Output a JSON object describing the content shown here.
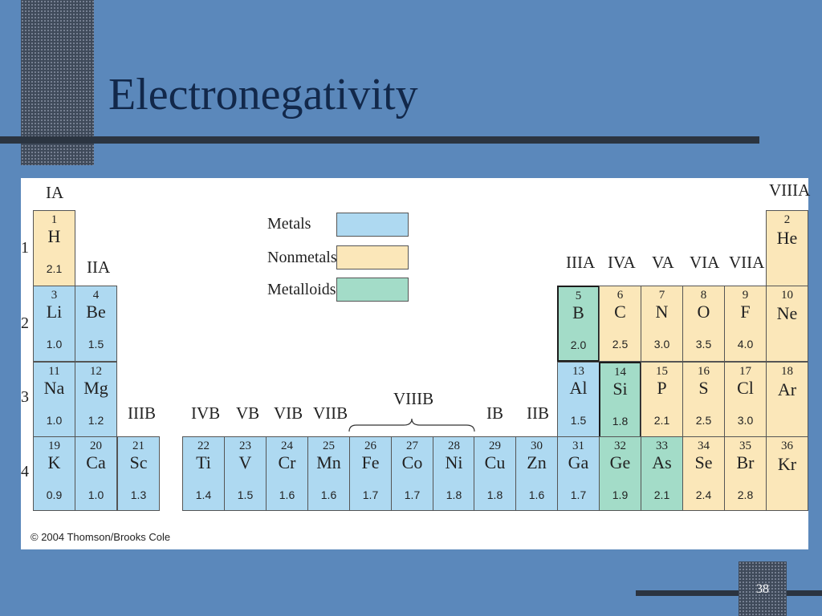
{
  "slide": {
    "title": "Electronegativity",
    "page_number": "38",
    "copyright": "© 2004 Thomson/Brooks Cole"
  },
  "legend": [
    {
      "label": "Metals",
      "color": "#aed9f1"
    },
    {
      "label": "Nonmetals",
      "color": "#fbe7b9"
    },
    {
      "label": "Metalloids",
      "color": "#a3dcc8"
    }
  ],
  "colors": {
    "metal": "#aed9f1",
    "nonmetal": "#fbe7b9",
    "metalloid": "#a3dcc8"
  },
  "group_labels": [
    "IA",
    "IIA",
    "IIIB",
    "IVB",
    "VB",
    "VIB",
    "VIIB",
    "VIIIB",
    "IB",
    "IIB",
    "IIIA",
    "IVA",
    "VA",
    "VIA",
    "VIIA",
    "VIIIA"
  ],
  "period_labels": [
    "1",
    "2",
    "3",
    "4"
  ],
  "elements": [
    {
      "number": "1",
      "symbol": "H",
      "en": "2.1",
      "type": "nonmetal"
    },
    {
      "number": "2",
      "symbol": "He",
      "en": "",
      "type": "nonmetal"
    },
    {
      "number": "3",
      "symbol": "Li",
      "en": "1.0",
      "type": "metal"
    },
    {
      "number": "4",
      "symbol": "Be",
      "en": "1.5",
      "type": "metal"
    },
    {
      "number": "5",
      "symbol": "B",
      "en": "2.0",
      "type": "metalloid"
    },
    {
      "number": "6",
      "symbol": "C",
      "en": "2.5",
      "type": "nonmetal"
    },
    {
      "number": "7",
      "symbol": "N",
      "en": "3.0",
      "type": "nonmetal"
    },
    {
      "number": "8",
      "symbol": "O",
      "en": "3.5",
      "type": "nonmetal"
    },
    {
      "number": "9",
      "symbol": "F",
      "en": "4.0",
      "type": "nonmetal"
    },
    {
      "number": "10",
      "symbol": "Ne",
      "en": "",
      "type": "nonmetal"
    },
    {
      "number": "11",
      "symbol": "Na",
      "en": "1.0",
      "type": "metal"
    },
    {
      "number": "12",
      "symbol": "Mg",
      "en": "1.2",
      "type": "metal"
    },
    {
      "number": "13",
      "symbol": "Al",
      "en": "1.5",
      "type": "metal"
    },
    {
      "number": "14",
      "symbol": "Si",
      "en": "1.8",
      "type": "metalloid"
    },
    {
      "number": "15",
      "symbol": "P",
      "en": "2.1",
      "type": "nonmetal"
    },
    {
      "number": "16",
      "symbol": "S",
      "en": "2.5",
      "type": "nonmetal"
    },
    {
      "number": "17",
      "symbol": "Cl",
      "en": "3.0",
      "type": "nonmetal"
    },
    {
      "number": "18",
      "symbol": "Ar",
      "en": "",
      "type": "nonmetal"
    },
    {
      "number": "19",
      "symbol": "K",
      "en": "0.9",
      "type": "metal"
    },
    {
      "number": "20",
      "symbol": "Ca",
      "en": "1.0",
      "type": "metal"
    },
    {
      "number": "21",
      "symbol": "Sc",
      "en": "1.3",
      "type": "metal"
    },
    {
      "number": "22",
      "symbol": "Ti",
      "en": "1.4",
      "type": "metal"
    },
    {
      "number": "23",
      "symbol": "V",
      "en": "1.5",
      "type": "metal"
    },
    {
      "number": "24",
      "symbol": "Cr",
      "en": "1.6",
      "type": "metal"
    },
    {
      "number": "25",
      "symbol": "Mn",
      "en": "1.6",
      "type": "metal"
    },
    {
      "number": "26",
      "symbol": "Fe",
      "en": "1.7",
      "type": "metal"
    },
    {
      "number": "27",
      "symbol": "Co",
      "en": "1.7",
      "type": "metal"
    },
    {
      "number": "28",
      "symbol": "Ni",
      "en": "1.8",
      "type": "metal"
    },
    {
      "number": "29",
      "symbol": "Cu",
      "en": "1.8",
      "type": "metal"
    },
    {
      "number": "30",
      "symbol": "Zn",
      "en": "1.6",
      "type": "metal"
    },
    {
      "number": "31",
      "symbol": "Ga",
      "en": "1.7",
      "type": "metal"
    },
    {
      "number": "32",
      "symbol": "Ge",
      "en": "1.9",
      "type": "metalloid"
    },
    {
      "number": "33",
      "symbol": "As",
      "en": "2.1",
      "type": "metalloid"
    },
    {
      "number": "34",
      "symbol": "Se",
      "en": "2.4",
      "type": "nonmetal"
    },
    {
      "number": "35",
      "symbol": "Br",
      "en": "2.8",
      "type": "nonmetal"
    },
    {
      "number": "36",
      "symbol": "Kr",
      "en": "",
      "type": "nonmetal"
    }
  ]
}
